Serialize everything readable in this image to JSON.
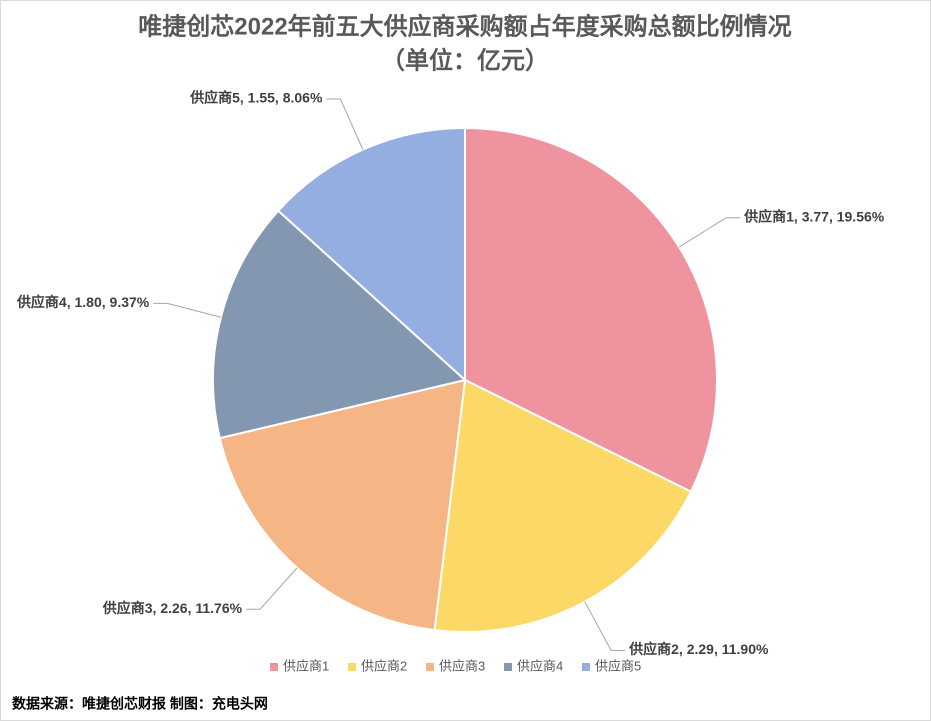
{
  "chart_data": {
    "type": "pie",
    "title": "唯捷创芯2022年前五大供应商采购额占年度采购总额比例情况",
    "subtitle": "（单位：亿元）",
    "categories": [
      "供应商1",
      "供应商2",
      "供应商3",
      "供应商4",
      "供应商5"
    ],
    "values": [
      3.77,
      2.29,
      2.26,
      1.8,
      1.55
    ],
    "value_labels": [
      "供应商1, 3.77, 19.56%",
      "供应商2, 2.29, 11.90%",
      "供应商3, 2.26, 11.76%",
      "供应商4, 1.80, 9.37%",
      "供应商5, 1.55, 8.06%"
    ],
    "colors": [
      "#ef949f",
      "#fcd967",
      "#f5b584",
      "#8497b0",
      "#94aee2"
    ],
    "legend": "bottom"
  },
  "source": "数据来源：唯捷创芯财报  制图：充电头网"
}
